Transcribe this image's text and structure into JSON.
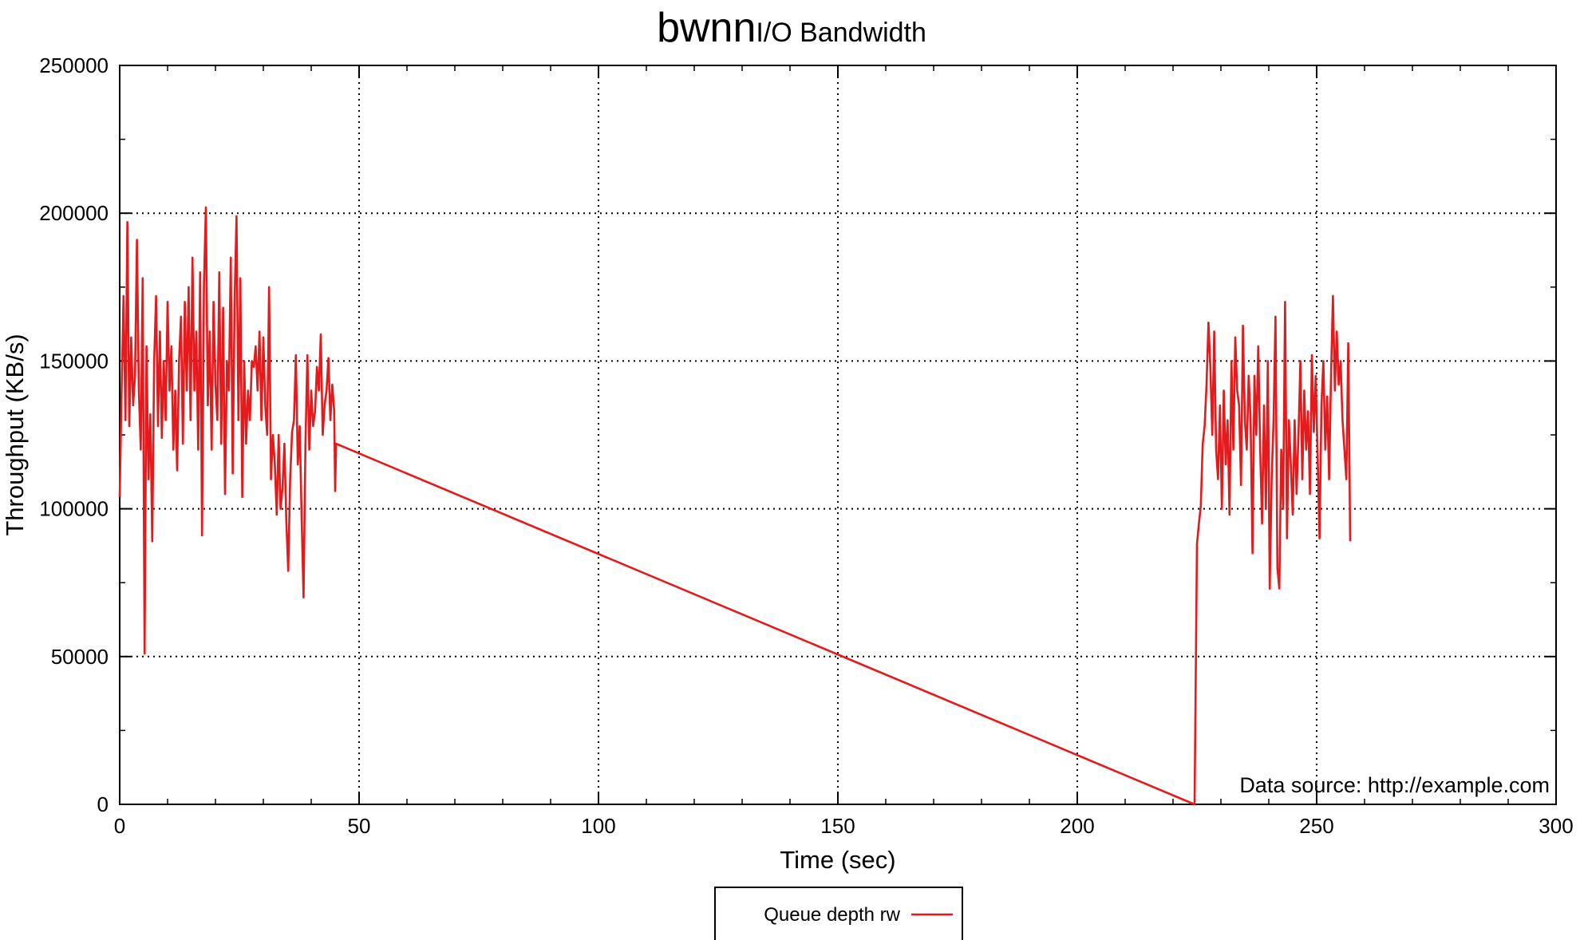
{
  "chart_data": {
    "type": "line",
    "title_main": "bwnn",
    "title_sub": "I/O Bandwidth",
    "xlabel": "Time (sec)",
    "ylabel": "Throughput (KB/s)",
    "xlim": [
      0,
      300
    ],
    "ylim": [
      0,
      250000
    ],
    "xticks": [
      0,
      50,
      100,
      150,
      200,
      250,
      300
    ],
    "yticks": [
      0,
      50000,
      100000,
      150000,
      200000,
      250000
    ],
    "grid": true,
    "legend_position": "bottom-center",
    "annotation": "Data source: http://example.com",
    "series": [
      {
        "name": "Queue depth rw",
        "color": "#e41a1c",
        "points": [
          [
            0.0,
            104000
          ],
          [
            0.4,
            140000
          ],
          [
            0.8,
            172000
          ],
          [
            1.2,
            130000
          ],
          [
            1.6,
            197000
          ],
          [
            2.0,
            128000
          ],
          [
            2.4,
            158000
          ],
          [
            2.8,
            135000
          ],
          [
            3.2,
            145000
          ],
          [
            3.6,
            191000
          ],
          [
            4.0,
            140000
          ],
          [
            4.4,
            120000
          ],
          [
            4.8,
            178000
          ],
          [
            5.2,
            51000
          ],
          [
            5.6,
            155000
          ],
          [
            6.0,
            110000
          ],
          [
            6.4,
            132000
          ],
          [
            6.8,
            89000
          ],
          [
            7.2,
            150000
          ],
          [
            7.6,
            172000
          ],
          [
            8.0,
            128000
          ],
          [
            8.4,
            160000
          ],
          [
            8.8,
            124000
          ],
          [
            9.2,
            150000
          ],
          [
            9.6,
            130000
          ],
          [
            10.0,
            170000
          ],
          [
            10.4,
            140000
          ],
          [
            10.8,
            155000
          ],
          [
            11.2,
            120000
          ],
          [
            11.6,
            140000
          ],
          [
            12.0,
            113000
          ],
          [
            12.4,
            150000
          ],
          [
            12.8,
            165000
          ],
          [
            13.2,
            122000
          ],
          [
            13.6,
            170000
          ],
          [
            14.0,
            140000
          ],
          [
            14.4,
            175000
          ],
          [
            14.8,
            130000
          ],
          [
            15.2,
            185000
          ],
          [
            15.6,
            140000
          ],
          [
            16.0,
            160000
          ],
          [
            16.4,
            120000
          ],
          [
            16.8,
            180000
          ],
          [
            17.2,
            91000
          ],
          [
            17.6,
            176000
          ],
          [
            18.0,
            202000
          ],
          [
            18.4,
            135000
          ],
          [
            18.8,
            160000
          ],
          [
            19.2,
            120000
          ],
          [
            19.6,
            170000
          ],
          [
            20.0,
            142000
          ],
          [
            20.4,
            130000
          ],
          [
            20.8,
            180000
          ],
          [
            21.2,
            122000
          ],
          [
            21.6,
            168000
          ],
          [
            22.0,
            105000
          ],
          [
            22.4,
            150000
          ],
          [
            22.8,
            140000
          ],
          [
            23.2,
            185000
          ],
          [
            23.6,
            112000
          ],
          [
            24.0,
            170000
          ],
          [
            24.4,
            199000
          ],
          [
            24.8,
            130000
          ],
          [
            25.2,
            178000
          ],
          [
            25.6,
            104000
          ],
          [
            26.0,
            150000
          ],
          [
            26.4,
            122000
          ],
          [
            26.8,
            140000
          ],
          [
            27.2,
            130000
          ],
          [
            27.6,
            150000
          ],
          [
            28.0,
            148000
          ],
          [
            28.4,
            155000
          ],
          [
            28.8,
            140000
          ],
          [
            29.2,
            160000
          ],
          [
            29.6,
            130000
          ],
          [
            30.0,
            158000
          ],
          [
            30.4,
            135000
          ],
          [
            30.8,
            125000
          ],
          [
            31.2,
            175000
          ],
          [
            31.6,
            110000
          ],
          [
            32.0,
            125000
          ],
          [
            32.4,
            115000
          ],
          [
            32.8,
            98000
          ],
          [
            33.2,
            125000
          ],
          [
            33.6,
            100000
          ],
          [
            34.0,
            107000
          ],
          [
            34.4,
            122000
          ],
          [
            34.8,
            96000
          ],
          [
            35.2,
            79000
          ],
          [
            35.6,
            110000
          ],
          [
            36.0,
            126000
          ],
          [
            36.4,
            130000
          ],
          [
            36.8,
            152000
          ],
          [
            37.2,
            115000
          ],
          [
            37.6,
            128000
          ],
          [
            38.0,
            97000
          ],
          [
            38.4,
            70000
          ],
          [
            38.8,
            122000
          ],
          [
            39.2,
            152000
          ],
          [
            39.6,
            120000
          ],
          [
            40.0,
            140000
          ],
          [
            40.4,
            128000
          ],
          [
            40.8,
            133000
          ],
          [
            41.2,
            148000
          ],
          [
            41.6,
            140000
          ],
          [
            42.0,
            159000
          ],
          [
            42.4,
            125000
          ],
          [
            42.8,
            135000
          ],
          [
            43.2,
            140000
          ],
          [
            43.6,
            151000
          ],
          [
            44.0,
            130000
          ],
          [
            44.4,
            142000
          ],
          [
            44.8,
            133000
          ],
          [
            45.0,
            106000
          ],
          [
            45.2,
            122000
          ],
          [
            224.5,
            0
          ],
          [
            225.0,
            88000
          ],
          [
            225.4,
            95000
          ],
          [
            225.8,
            101000
          ],
          [
            226.2,
            122000
          ],
          [
            226.6,
            128000
          ],
          [
            227.0,
            142000
          ],
          [
            227.4,
            163000
          ],
          [
            227.8,
            148000
          ],
          [
            228.2,
            125000
          ],
          [
            228.6,
            160000
          ],
          [
            229.0,
            120000
          ],
          [
            229.4,
            110000
          ],
          [
            229.8,
            135000
          ],
          [
            230.2,
            100000
          ],
          [
            230.6,
            140000
          ],
          [
            231.0,
            115000
          ],
          [
            231.4,
            130000
          ],
          [
            231.8,
            98000
          ],
          [
            232.2,
            150000
          ],
          [
            232.6,
            120000
          ],
          [
            233.0,
            158000
          ],
          [
            233.4,
            140000
          ],
          [
            233.8,
            135000
          ],
          [
            234.2,
            108000
          ],
          [
            234.6,
            162000
          ],
          [
            235.0,
            130000
          ],
          [
            235.4,
            120000
          ],
          [
            235.8,
            145000
          ],
          [
            236.2,
            130000
          ],
          [
            236.6,
            85000
          ],
          [
            237.0,
            145000
          ],
          [
            237.4,
            125000
          ],
          [
            237.8,
            155000
          ],
          [
            238.2,
            120000
          ],
          [
            238.6,
            95000
          ],
          [
            239.0,
            135000
          ],
          [
            239.4,
            100000
          ],
          [
            239.8,
            150000
          ],
          [
            240.2,
            73000
          ],
          [
            240.6,
            110000
          ],
          [
            241.0,
            130000
          ],
          [
            241.4,
            165000
          ],
          [
            241.8,
            80000
          ],
          [
            242.2,
            73000
          ],
          [
            242.6,
            120000
          ],
          [
            243.0,
            100000
          ],
          [
            243.4,
            170000
          ],
          [
            243.8,
            90000
          ],
          [
            244.2,
            130000
          ],
          [
            244.6,
            115000
          ],
          [
            245.0,
            98000
          ],
          [
            245.4,
            130000
          ],
          [
            245.8,
            105000
          ],
          [
            246.2,
            125000
          ],
          [
            246.6,
            150000
          ],
          [
            247.0,
            110000
          ],
          [
            247.4,
            140000
          ],
          [
            247.8,
            120000
          ],
          [
            248.2,
            133000
          ],
          [
            248.6,
            105000
          ],
          [
            249.0,
            152000
          ],
          [
            249.4,
            126000
          ],
          [
            249.8,
            145000
          ],
          [
            250.2,
            118000
          ],
          [
            250.6,
            90000
          ],
          [
            251.0,
            135000
          ],
          [
            251.4,
            150000
          ],
          [
            251.8,
            120000
          ],
          [
            252.2,
            138000
          ],
          [
            252.6,
            110000
          ],
          [
            253.0,
            145000
          ],
          [
            253.4,
            172000
          ],
          [
            253.8,
            140000
          ],
          [
            254.2,
            160000
          ],
          [
            254.6,
            142000
          ],
          [
            255.0,
            150000
          ],
          [
            255.4,
            130000
          ],
          [
            255.8,
            120000
          ],
          [
            256.2,
            110000
          ],
          [
            256.6,
            156000
          ],
          [
            257.0,
            89000
          ]
        ]
      }
    ]
  }
}
